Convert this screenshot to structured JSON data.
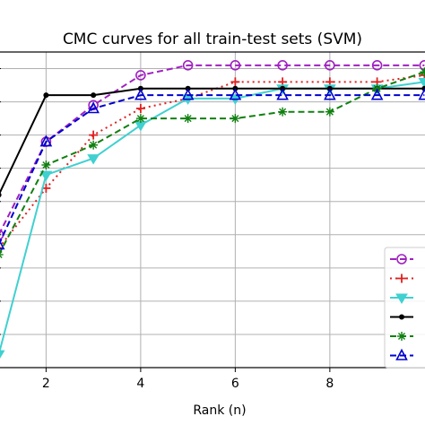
{
  "chart_data": {
    "type": "line",
    "title": "CMC curves for all train-test sets (SVM)",
    "xlabel": "Rank (n)",
    "ylabel": "",
    "xlim": [
      1.0,
      10.0
    ],
    "ylim": [
      0.0,
      1.0
    ],
    "x_ticks": [
      2,
      4,
      6,
      8
    ],
    "grid": true,
    "legend_position": "right",
    "series": [
      {
        "color": "#a020c0",
        "linestyle": "dashed",
        "marker": "circle-open",
        "x": [
          1,
          2,
          3,
          4,
          5,
          6,
          7,
          8,
          9,
          10
        ],
        "y": [
          0.4,
          0.68,
          0.79,
          0.88,
          0.91,
          0.91,
          0.91,
          0.91,
          0.91,
          0.91
        ]
      },
      {
        "color": "#e02020",
        "linestyle": "dotted",
        "marker": "plus",
        "x": [
          1,
          2,
          3,
          4,
          5,
          6,
          7,
          8,
          9,
          10
        ],
        "y": [
          0.36,
          0.54,
          0.7,
          0.78,
          0.81,
          0.86,
          0.86,
          0.86,
          0.86,
          0.88
        ]
      },
      {
        "color": "#40d0d0",
        "linestyle": "solid",
        "marker": "triangle-down",
        "x": [
          1,
          2,
          3,
          4,
          5,
          6,
          7,
          8,
          9,
          10
        ],
        "y": [
          0.04,
          0.58,
          0.63,
          0.73,
          0.81,
          0.81,
          0.84,
          0.84,
          0.84,
          0.86
        ]
      },
      {
        "color": "#000000",
        "linestyle": "solid",
        "marker": "dot",
        "x": [
          1,
          2,
          3,
          4,
          5,
          6,
          7,
          8,
          9,
          10
        ],
        "y": [
          0.52,
          0.82,
          0.82,
          0.84,
          0.84,
          0.84,
          0.84,
          0.84,
          0.84,
          0.84
        ]
      },
      {
        "color": "#108010",
        "linestyle": "dashed",
        "marker": "asterisk",
        "x": [
          1,
          2,
          3,
          4,
          5,
          6,
          7,
          8,
          9,
          10
        ],
        "y": [
          0.34,
          0.61,
          0.67,
          0.75,
          0.75,
          0.75,
          0.77,
          0.77,
          0.84,
          0.89
        ]
      },
      {
        "color": "#0000d0",
        "linestyle": "dashed",
        "marker": "triangle-up-open",
        "x": [
          1,
          2,
          3,
          4,
          5,
          6,
          7,
          8,
          9,
          10
        ],
        "y": [
          0.37,
          0.68,
          0.78,
          0.82,
          0.82,
          0.82,
          0.82,
          0.82,
          0.82,
          0.82
        ]
      }
    ]
  }
}
